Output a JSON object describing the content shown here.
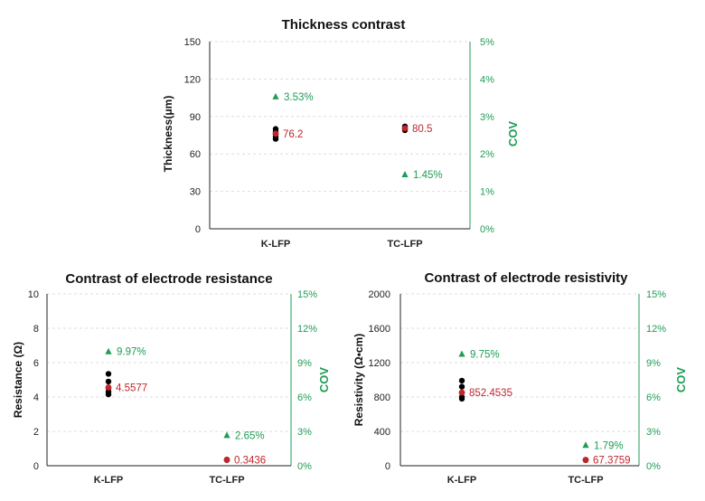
{
  "colors": {
    "raw": "#000000",
    "mean": "#c0262d",
    "cov": "#1f9d55",
    "grid": "#dddddd",
    "axis": "#222222"
  },
  "chart_data": [
    {
      "type": "scatter",
      "title": "Thickness contrast",
      "ylabel": "Thickness(μm)",
      "ylabel_right": "COV",
      "categories": [
        "K-LFP",
        "TC-LFP"
      ],
      "ylim": [
        0,
        150
      ],
      "yticks": [
        "0",
        "30",
        "60",
        "90",
        "120",
        "150"
      ],
      "ylim_right": [
        0,
        5
      ],
      "yticks_right": [
        "0%",
        "1%",
        "2%",
        "3%",
        "4%",
        "5%"
      ],
      "grid": true,
      "series": [
        {
          "role": "raw",
          "x": [
            "K-LFP",
            "K-LFP",
            "K-LFP",
            "K-LFP",
            "K-LFP",
            "TC-LFP",
            "TC-LFP",
            "TC-LFP"
          ],
          "values": [
            72,
            74,
            76,
            78,
            80,
            79,
            80.5,
            82
          ]
        },
        {
          "role": "mean",
          "values": [
            76.2,
            80.5
          ],
          "labels": [
            "76.2",
            "80.5"
          ]
        },
        {
          "role": "cov",
          "values": [
            3.53,
            1.45
          ],
          "labels": [
            "3.53%",
            "1.45%"
          ]
        }
      ]
    },
    {
      "type": "scatter",
      "title": "Contrast of electrode resistance",
      "ylabel": "Resistance (Ω)",
      "ylabel_right": "COV",
      "categories": [
        "K-LFP",
        "TC-LFP"
      ],
      "ylim": [
        0,
        10
      ],
      "yticks": [
        "0",
        "2",
        "4",
        "6",
        "8",
        "10"
      ],
      "ylim_right": [
        0,
        15
      ],
      "yticks_right": [
        "0%",
        "3%",
        "6%",
        "9%",
        "12%",
        "15%"
      ],
      "grid": true,
      "series": [
        {
          "role": "raw",
          "x": [
            "K-LFP",
            "K-LFP",
            "K-LFP",
            "K-LFP",
            "K-LFP",
            "TC-LFP",
            "TC-LFP"
          ],
          "values": [
            4.15,
            4.3,
            4.5,
            4.9,
            5.35,
            0.33,
            0.36
          ]
        },
        {
          "role": "mean",
          "values": [
            4.5577,
            0.3436
          ],
          "labels": [
            "4.5577",
            "0.3436"
          ]
        },
        {
          "role": "cov",
          "values": [
            9.97,
            2.65
          ],
          "labels": [
            "9.97%",
            "2.65%"
          ]
        }
      ]
    },
    {
      "type": "scatter",
      "title": "Contrast of electrode resistivity",
      "ylabel": "Resistivity (Ω•cm)",
      "ylabel_right": "COV",
      "categories": [
        "K-LFP",
        "TC-LFP"
      ],
      "ylim": [
        0,
        2000
      ],
      "yticks": [
        "0",
        "400",
        "800",
        "1200",
        "1600",
        "2000"
      ],
      "ylim_right": [
        0,
        15
      ],
      "yticks_right": [
        "0%",
        "3%",
        "6%",
        "9%",
        "12%",
        "15%"
      ],
      "grid": true,
      "series": [
        {
          "role": "raw",
          "x": [
            "K-LFP",
            "K-LFP",
            "K-LFP",
            "K-LFP",
            "K-LFP",
            "TC-LFP",
            "TC-LFP"
          ],
          "values": [
            780,
            800,
            850,
            920,
            990,
            65,
            70
          ]
        },
        {
          "role": "mean",
          "values": [
            852.4535,
            67.3759
          ],
          "labels": [
            "852.4535",
            "67.3759"
          ]
        },
        {
          "role": "cov",
          "values": [
            9.75,
            1.79
          ],
          "labels": [
            "9.75%",
            "1.79%"
          ]
        }
      ]
    }
  ]
}
